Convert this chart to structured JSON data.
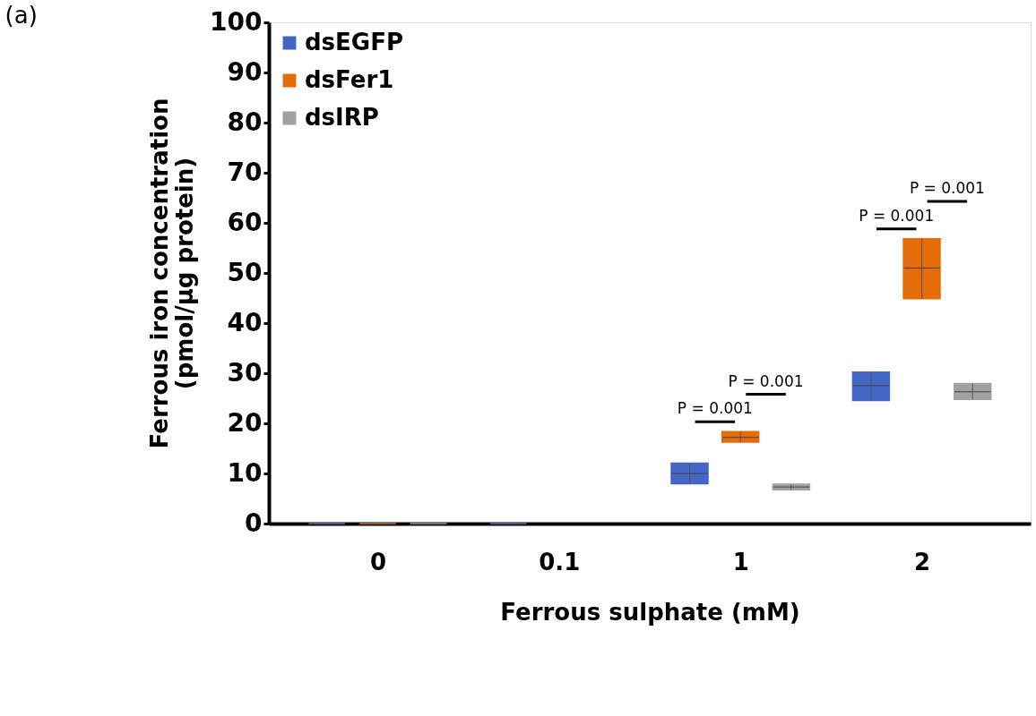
{
  "chart_data": {
    "type": "box",
    "xlabel": "Ferrous sulphate (mM)",
    "ylabel": "Ferrous iron concentration\n(pmol/µg protein)",
    "categories": [
      "0",
      "0.1",
      "1",
      "2"
    ],
    "ylim": [
      0,
      100
    ],
    "yticks": [
      0,
      10,
      20,
      30,
      40,
      50,
      60,
      70,
      80,
      90,
      100
    ],
    "grid": false,
    "legend": "top left",
    "series": [
      {
        "name": "dsEGFP",
        "color": "#4466c4",
        "boxes": [
          {
            "low": 0,
            "q1": 0,
            "median": 0,
            "q3": 0,
            "high": 0
          },
          {
            "low": 0,
            "q1": 0,
            "median": 0,
            "q3": 0,
            "high": 0
          },
          {
            "low": 8,
            "q1": 8,
            "median": 10,
            "q3": 12,
            "high": 12
          },
          {
            "low": 24.6,
            "q1": 24.6,
            "median": 27.5,
            "q3": 30.2,
            "high": 30.2
          }
        ]
      },
      {
        "name": "dsFer1",
        "color": "#e46c0a",
        "boxes": [
          {
            "low": 0,
            "q1": 0,
            "median": 0,
            "q3": 0,
            "high": 0
          },
          null,
          {
            "low": 16.3,
            "q1": 16.3,
            "median": 17.2,
            "q3": 18.3,
            "high": 18.3
          },
          {
            "low": 44.9,
            "q1": 44.9,
            "median": 51,
            "q3": 56.8,
            "high": 56.8
          }
        ]
      },
      {
        "name": "dsIRP",
        "color": "#a0a0a0",
        "boxes": [
          {
            "low": 0,
            "q1": 0,
            "median": 0,
            "q3": 0,
            "high": 0
          },
          null,
          {
            "low": 6.8,
            "q1": 6.8,
            "median": 7.3,
            "q3": 7.8,
            "high": 7.8
          },
          {
            "low": 24.8,
            "q1": 24.8,
            "median": 26.3,
            "q3": 27.9,
            "high": 27.9
          }
        ]
      }
    ],
    "annotations": [
      "(a)",
      "P = 0.001",
      "P = 0.001",
      "P = 0.001",
      "P = 0.001"
    ]
  }
}
